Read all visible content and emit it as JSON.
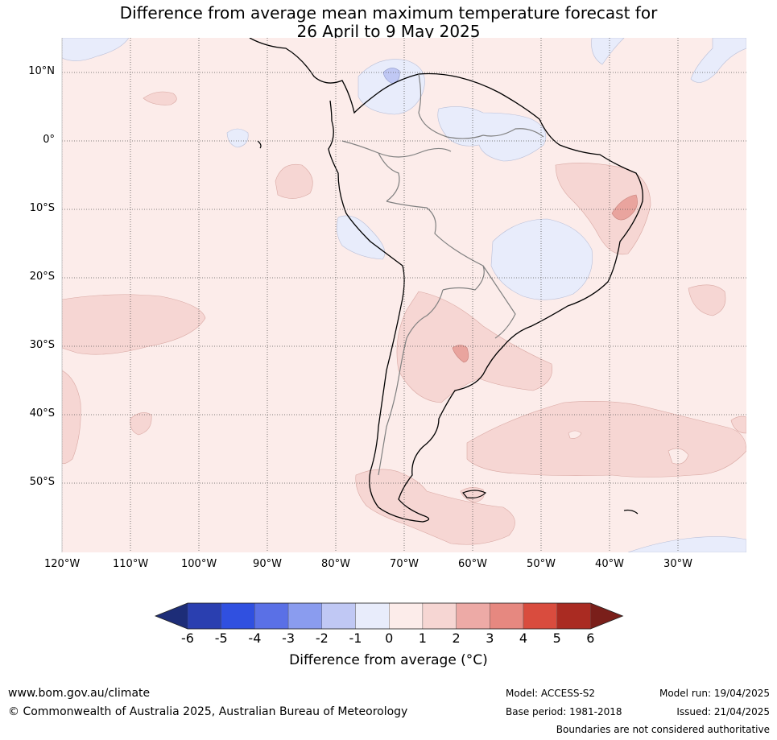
{
  "title": {
    "line1": "Difference from average mean maximum temperature forecast for",
    "line2": "26 April to 9 May 2025"
  },
  "axes": {
    "lat_labels": [
      "10°N",
      "0°",
      "10°S",
      "20°S",
      "30°S",
      "40°S",
      "50°S"
    ],
    "lat_values": [
      10,
      0,
      -10,
      -20,
      -30,
      -40,
      -50
    ],
    "lon_labels": [
      "120°W",
      "110°W",
      "100°W",
      "90°W",
      "80°W",
      "70°W",
      "60°W",
      "50°W",
      "40°W",
      "30°W"
    ],
    "lon_values": [
      -120,
      -110,
      -100,
      -90,
      -80,
      -70,
      -60,
      -50,
      -40,
      -30
    ]
  },
  "colorbar": {
    "ticks": [
      "-6",
      "-5",
      "-4",
      "-3",
      "-2",
      "-1",
      "0",
      "1",
      "2",
      "3",
      "4",
      "5",
      "6"
    ],
    "colors": [
      "#2a3fb0",
      "#3050e0",
      "#5a70e6",
      "#8a9cef",
      "#c0c8f4",
      "#e8ecfb",
      "#fcecea",
      "#f6d6d3",
      "#edaaa6",
      "#e68880",
      "#d94c3e",
      "#aa2b22"
    ],
    "under_color": "#1d2d78",
    "over_color": "#7a1f1a",
    "label": "Difference from average (°C)"
  },
  "footer": {
    "website": "www.bom.gov.au/climate",
    "copyright": "© Commonwealth of Australia 2025, Australian Bureau of Meteorology",
    "model": "Model: ACCESS-S2",
    "base_period": "Base period: 1981-2018",
    "model_run": "Model run: 19/04/2025",
    "issued": "Issued: 21/04/2025",
    "disclaimer": "Boundaries are not considered authoritative"
  },
  "colors": {
    "background_anomaly": "#fcecea",
    "positive_1_2": "#f6d6d3",
    "positive_2_3": "#edaaa6",
    "negative_0_1": "#e8ecfb",
    "negative_1_2": "#c0c8f4"
  }
}
